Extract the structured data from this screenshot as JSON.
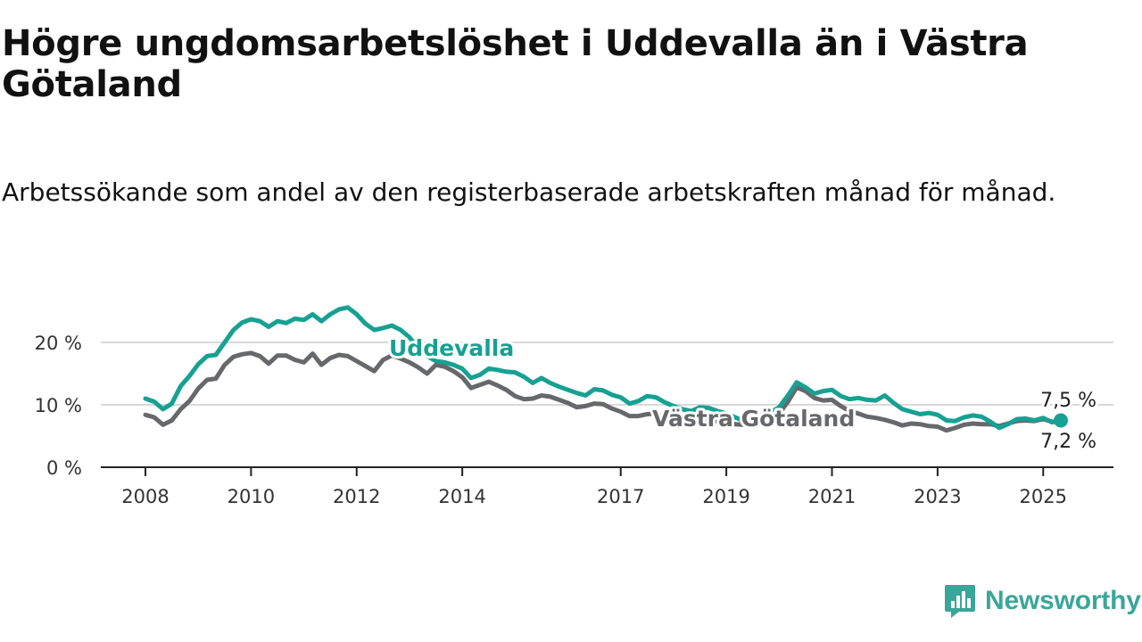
{
  "title": "Högre ungdomsarbetslöshet i Uddevalla än i Västra Götaland",
  "subtitle": "Arbetssökande som andel av den registerbaserade arbetskraften månad för månad.",
  "brand": {
    "name": "Newsworthy",
    "color": "#3aa69a",
    "icon": "newsworthy-logo-icon"
  },
  "colors": {
    "uddevalla": "#16a192",
    "vastra_gotaland": "#67686b",
    "grid": "#d9d9d9",
    "axis": "#222222"
  },
  "chart_data": {
    "type": "line",
    "ylim": [
      0,
      28
    ],
    "yticks": [
      {
        "value": 0,
        "label": "0 %"
      },
      {
        "value": 10,
        "label": "10 %"
      },
      {
        "value": 20,
        "label": "20 %"
      }
    ],
    "xlim": [
      "2008-01",
      "2026-06"
    ],
    "xticks": [
      "2008",
      "2010",
      "2012",
      "2014",
      "2017",
      "2019",
      "2021",
      "2023",
      "2025"
    ],
    "grid": true,
    "legend": "inline labels",
    "series": [
      {
        "name": "Uddevalla",
        "end_label": "7,5 %",
        "points": [
          [
            "2008-01",
            11.0
          ],
          [
            "2008-03",
            10.5
          ],
          [
            "2008-05",
            9.3
          ],
          [
            "2008-07",
            10.2
          ],
          [
            "2008-09",
            13.0
          ],
          [
            "2008-11",
            14.6
          ],
          [
            "2009-01",
            16.5
          ],
          [
            "2009-03",
            17.8
          ],
          [
            "2009-05",
            18.0
          ],
          [
            "2009-07",
            20.0
          ],
          [
            "2009-09",
            22.0
          ],
          [
            "2009-11",
            23.2
          ],
          [
            "2010-01",
            23.7
          ],
          [
            "2010-03",
            23.4
          ],
          [
            "2010-05",
            22.5
          ],
          [
            "2010-07",
            23.4
          ],
          [
            "2010-09",
            23.1
          ],
          [
            "2010-11",
            23.8
          ],
          [
            "2011-01",
            23.6
          ],
          [
            "2011-03",
            24.5
          ],
          [
            "2011-05",
            23.4
          ],
          [
            "2011-07",
            24.5
          ],
          [
            "2011-09",
            25.3
          ],
          [
            "2011-11",
            25.6
          ],
          [
            "2012-01",
            24.5
          ],
          [
            "2012-03",
            23.0
          ],
          [
            "2012-05",
            22.0
          ],
          [
            "2012-07",
            22.3
          ],
          [
            "2012-09",
            22.7
          ],
          [
            "2012-11",
            22.0
          ],
          [
            "2013-01",
            20.8
          ],
          [
            "2013-03",
            19.0
          ],
          [
            "2013-05",
            17.8
          ],
          [
            "2013-07",
            17.0
          ],
          [
            "2013-09",
            16.8
          ],
          [
            "2013-11",
            16.4
          ],
          [
            "2014-01",
            15.8
          ],
          [
            "2014-03",
            14.3
          ],
          [
            "2014-05",
            14.8
          ],
          [
            "2014-07",
            15.8
          ],
          [
            "2014-09",
            15.6
          ],
          [
            "2014-11",
            15.3
          ],
          [
            "2015-01",
            15.2
          ],
          [
            "2015-03",
            14.5
          ],
          [
            "2015-05",
            13.5
          ],
          [
            "2015-07",
            14.3
          ],
          [
            "2015-09",
            13.5
          ],
          [
            "2015-11",
            12.9
          ],
          [
            "2016-01",
            12.4
          ],
          [
            "2016-03",
            11.9
          ],
          [
            "2016-05",
            11.5
          ],
          [
            "2016-07",
            12.5
          ],
          [
            "2016-09",
            12.3
          ],
          [
            "2016-11",
            11.6
          ],
          [
            "2017-01",
            11.2
          ],
          [
            "2017-03",
            10.2
          ],
          [
            "2017-05",
            10.6
          ],
          [
            "2017-07",
            11.4
          ],
          [
            "2017-09",
            11.2
          ],
          [
            "2017-11",
            10.4
          ],
          [
            "2018-01",
            9.8
          ],
          [
            "2018-03",
            9.3
          ],
          [
            "2018-05",
            9.0
          ],
          [
            "2018-07",
            9.6
          ],
          [
            "2018-09",
            9.5
          ],
          [
            "2018-11",
            9.0
          ],
          [
            "2019-01",
            8.6
          ],
          [
            "2019-03",
            8.0
          ],
          [
            "2019-05",
            7.4
          ],
          [
            "2019-07",
            7.8
          ],
          [
            "2019-09",
            8.3
          ],
          [
            "2019-11",
            8.8
          ],
          [
            "2020-01",
            9.6
          ],
          [
            "2020-03",
            11.5
          ],
          [
            "2020-05",
            13.6
          ],
          [
            "2020-07",
            12.8
          ],
          [
            "2020-09",
            11.8
          ],
          [
            "2020-11",
            12.2
          ],
          [
            "2021-01",
            12.4
          ],
          [
            "2021-03",
            11.4
          ],
          [
            "2021-05",
            10.9
          ],
          [
            "2021-07",
            11.1
          ],
          [
            "2021-09",
            10.8
          ],
          [
            "2021-11",
            10.7
          ],
          [
            "2022-01",
            11.5
          ],
          [
            "2022-03",
            10.3
          ],
          [
            "2022-05",
            9.3
          ],
          [
            "2022-07",
            8.9
          ],
          [
            "2022-09",
            8.5
          ],
          [
            "2022-11",
            8.7
          ],
          [
            "2023-01",
            8.4
          ],
          [
            "2023-03",
            7.5
          ],
          [
            "2023-05",
            7.4
          ],
          [
            "2023-07",
            8.0
          ],
          [
            "2023-09",
            8.3
          ],
          [
            "2023-11",
            8.1
          ],
          [
            "2024-01",
            7.3
          ],
          [
            "2024-03",
            6.3
          ],
          [
            "2024-05",
            6.9
          ],
          [
            "2024-07",
            7.7
          ],
          [
            "2024-09",
            7.8
          ],
          [
            "2024-11",
            7.5
          ],
          [
            "2025-01",
            7.9
          ],
          [
            "2025-03",
            7.2
          ],
          [
            "2025-05",
            7.5
          ]
        ]
      },
      {
        "name": "Västra Götaland",
        "end_label": "7,2 %",
        "points": [
          [
            "2008-01",
            8.4
          ],
          [
            "2008-03",
            8.0
          ],
          [
            "2008-05",
            6.8
          ],
          [
            "2008-07",
            7.5
          ],
          [
            "2008-09",
            9.3
          ],
          [
            "2008-11",
            10.6
          ],
          [
            "2009-01",
            12.6
          ],
          [
            "2009-03",
            14.0
          ],
          [
            "2009-05",
            14.2
          ],
          [
            "2009-07",
            16.4
          ],
          [
            "2009-09",
            17.7
          ],
          [
            "2009-11",
            18.1
          ],
          [
            "2010-01",
            18.3
          ],
          [
            "2010-03",
            17.8
          ],
          [
            "2010-05",
            16.6
          ],
          [
            "2010-07",
            17.9
          ],
          [
            "2010-09",
            17.9
          ],
          [
            "2010-11",
            17.2
          ],
          [
            "2011-01",
            16.8
          ],
          [
            "2011-03",
            18.2
          ],
          [
            "2011-05",
            16.4
          ],
          [
            "2011-07",
            17.5
          ],
          [
            "2011-09",
            18.0
          ],
          [
            "2011-11",
            17.8
          ],
          [
            "2012-01",
            17.0
          ],
          [
            "2012-03",
            16.2
          ],
          [
            "2012-05",
            15.4
          ],
          [
            "2012-07",
            17.2
          ],
          [
            "2012-09",
            17.9
          ],
          [
            "2012-11",
            17.4
          ],
          [
            "2013-01",
            16.8
          ],
          [
            "2013-03",
            16.0
          ],
          [
            "2013-05",
            15.0
          ],
          [
            "2013-07",
            16.4
          ],
          [
            "2013-09",
            16.1
          ],
          [
            "2013-11",
            15.4
          ],
          [
            "2014-01",
            14.4
          ],
          [
            "2014-03",
            12.7
          ],
          [
            "2014-05",
            13.2
          ],
          [
            "2014-07",
            13.7
          ],
          [
            "2014-09",
            13.1
          ],
          [
            "2014-11",
            12.4
          ],
          [
            "2015-01",
            11.4
          ],
          [
            "2015-03",
            10.9
          ],
          [
            "2015-05",
            11.0
          ],
          [
            "2015-07",
            11.5
          ],
          [
            "2015-09",
            11.3
          ],
          [
            "2015-11",
            10.8
          ],
          [
            "2016-01",
            10.3
          ],
          [
            "2016-03",
            9.6
          ],
          [
            "2016-05",
            9.8
          ],
          [
            "2016-07",
            10.2
          ],
          [
            "2016-09",
            10.1
          ],
          [
            "2016-11",
            9.4
          ],
          [
            "2017-01",
            8.9
          ],
          [
            "2017-03",
            8.2
          ],
          [
            "2017-05",
            8.2
          ],
          [
            "2017-07",
            8.5
          ],
          [
            "2017-09",
            8.6
          ],
          [
            "2017-11",
            8.0
          ],
          [
            "2018-01",
            7.8
          ],
          [
            "2018-03",
            7.4
          ],
          [
            "2018-05",
            7.7
          ],
          [
            "2018-07",
            8.0
          ],
          [
            "2018-09",
            7.8
          ],
          [
            "2018-11",
            7.3
          ],
          [
            "2019-01",
            7.2
          ],
          [
            "2019-03",
            6.9
          ],
          [
            "2019-05",
            6.8
          ],
          [
            "2019-07",
            7.3
          ],
          [
            "2019-09",
            7.8
          ],
          [
            "2019-11",
            8.2
          ],
          [
            "2020-01",
            8.6
          ],
          [
            "2020-03",
            10.5
          ],
          [
            "2020-05",
            12.8
          ],
          [
            "2020-07",
            12.2
          ],
          [
            "2020-09",
            11.1
          ],
          [
            "2020-11",
            10.7
          ],
          [
            "2021-01",
            10.8
          ],
          [
            "2021-03",
            9.8
          ],
          [
            "2021-05",
            9.0
          ],
          [
            "2021-07",
            8.6
          ],
          [
            "2021-09",
            8.1
          ],
          [
            "2021-11",
            7.9
          ],
          [
            "2022-01",
            7.6
          ],
          [
            "2022-03",
            7.2
          ],
          [
            "2022-05",
            6.7
          ],
          [
            "2022-07",
            7.0
          ],
          [
            "2022-09",
            6.9
          ],
          [
            "2022-11",
            6.6
          ],
          [
            "2023-01",
            6.5
          ],
          [
            "2023-03",
            5.9
          ],
          [
            "2023-05",
            6.3
          ],
          [
            "2023-07",
            6.8
          ],
          [
            "2023-09",
            7.0
          ],
          [
            "2023-11",
            6.9
          ],
          [
            "2024-01",
            6.9
          ],
          [
            "2024-03",
            6.6
          ],
          [
            "2024-05",
            7.0
          ],
          [
            "2024-07",
            7.4
          ],
          [
            "2024-09",
            7.5
          ],
          [
            "2024-11",
            7.4
          ],
          [
            "2025-01",
            7.7
          ],
          [
            "2025-03",
            7.3
          ],
          [
            "2025-05",
            7.2
          ]
        ]
      }
    ]
  }
}
